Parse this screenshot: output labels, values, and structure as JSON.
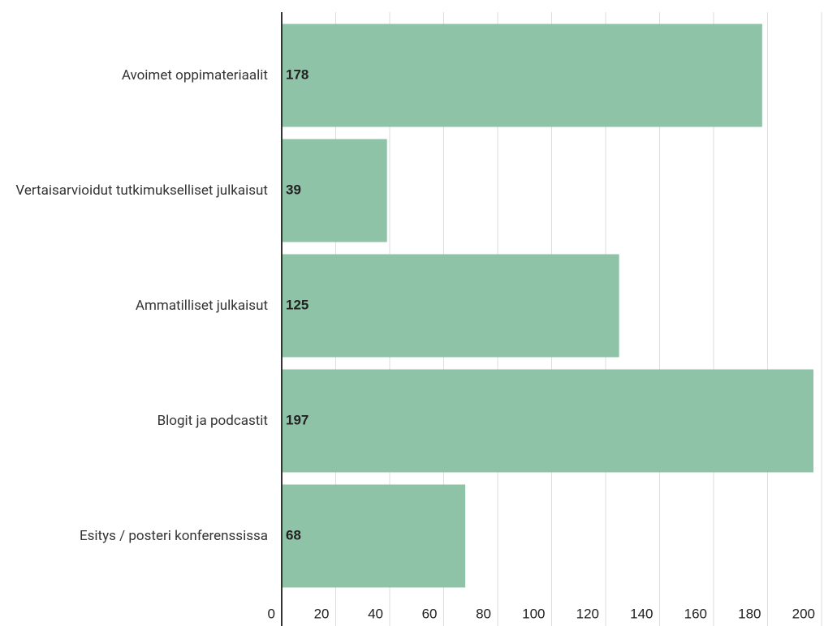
{
  "chart_data": {
    "type": "hbar",
    "categories": [
      "Avoimet oppimateriaalit",
      "Vertaisarvioidut tutkimukselliset julkaisut",
      "Ammatilliset julkaisut",
      "Blogit ja podcastit",
      "Esitys / posteri konferenssissa"
    ],
    "values": [
      178,
      39,
      125,
      197,
      68
    ],
    "color": "#8fc3a7",
    "xlim": [
      0,
      200
    ],
    "xticks": [
      0,
      20,
      40,
      60,
      80,
      100,
      120,
      140,
      160,
      180,
      200
    ],
    "grid": true
  }
}
